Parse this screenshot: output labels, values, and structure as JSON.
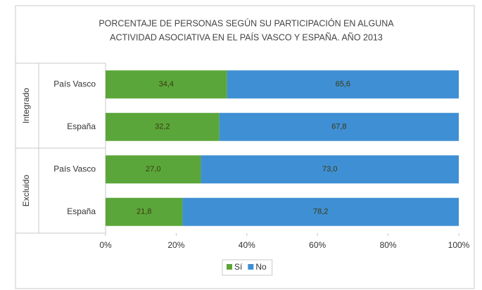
{
  "chart_data": {
    "type": "stacked_bar_horizontal",
    "title": [
      "PORCENTAJE DE PERSONAS SEGÚN SU PARTICIPACIÓN EN ALGUNA",
      "ACTIVIDAD ASOCIATIVA EN EL PAÍS VASCO Y ESPAÑA. AÑO 2013"
    ],
    "groups": [
      {
        "label": "Integrado",
        "categories": [
          "País Vasco",
          "España"
        ]
      },
      {
        "label": "Excluido",
        "categories": [
          "País Vasco",
          "España"
        ]
      }
    ],
    "series": [
      {
        "name": "Sí",
        "color": "#5ba63a",
        "values": [
          34.4,
          32.2,
          27.0,
          21.8
        ],
        "value_labels": [
          "34,4",
          "32,2",
          "27,0",
          "21,8"
        ]
      },
      {
        "name": "No",
        "color": "#3f8fd4",
        "values": [
          65.6,
          67.8,
          73.0,
          78.2
        ],
        "value_labels": [
          "65,6",
          "67,8",
          "73,0",
          "78,2"
        ]
      }
    ],
    "xlim": [
      0,
      100
    ],
    "xticks": [
      {
        "value": 0,
        "label": "0%"
      },
      {
        "value": 20,
        "label": "20%"
      },
      {
        "value": 40,
        "label": "40%"
      },
      {
        "value": 60,
        "label": "60%"
      },
      {
        "value": 80,
        "label": "80%"
      },
      {
        "value": 100,
        "label": "100%"
      }
    ],
    "legend": "bottom"
  }
}
